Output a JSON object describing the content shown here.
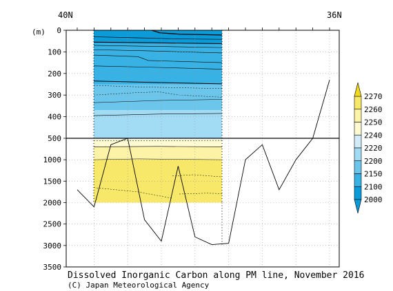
{
  "chart_data": {
    "type": "contour-section",
    "title": "Dissolved Inorganic Carbon along PM line, November 2016",
    "credit": "(C) Japan Meteorological Agency",
    "ylabel": "(m)",
    "x_labels": {
      "left": "40N",
      "right": "36N"
    },
    "y_ticks_upper": [
      0,
      100,
      200,
      300,
      400,
      500
    ],
    "y_ticks_lower": [
      1000,
      1500,
      2000,
      2500,
      3000,
      3500
    ],
    "colorbar": {
      "levels": [
        2000,
        2100,
        2150,
        2200,
        2220,
        2240,
        2250,
        2260,
        2270
      ],
      "colors": [
        "#0a9bd8",
        "#38b2e4",
        "#6cc6ec",
        "#a2dbf4",
        "#d2ecfa",
        "#fefbd3",
        "#fdf3a6",
        "#f8e86a",
        "#f1d91e"
      ],
      "extend": "both"
    },
    "bottom_topography_depth_m": [
      1700,
      2100,
      650,
      500,
      2400,
      2900,
      1150,
      2800,
      2980,
      2950,
      1000,
      650,
      1700,
      1000,
      500,
      230
    ]
  }
}
